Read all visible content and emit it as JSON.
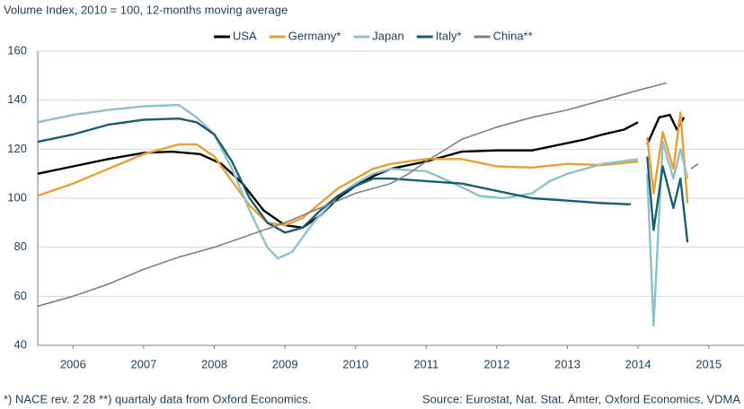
{
  "chart_data": {
    "type": "line",
    "title": "Volume Index, 2010 = 100, 12-months moving average",
    "xlim": [
      2006,
      2016
    ],
    "xticks": [
      {
        "value": 2006.5,
        "label": "2006"
      },
      {
        "value": 2007.5,
        "label": "2007"
      },
      {
        "value": 2008.5,
        "label": "2008"
      },
      {
        "value": 2009.5,
        "label": "2009"
      },
      {
        "value": 2010.5,
        "label": "2010"
      },
      {
        "value": 2011.5,
        "label": "2011"
      },
      {
        "value": 2012.5,
        "label": "2012"
      },
      {
        "value": 2013.5,
        "label": "2013"
      },
      {
        "value": 2014.5,
        "label": "2014"
      },
      {
        "value": 2015.5,
        "label": "2015"
      }
    ],
    "ylim": [
      40,
      160
    ],
    "yticks": [
      40,
      60,
      80,
      100,
      120,
      140,
      160
    ],
    "grid": true,
    "legend": "top",
    "series": [
      {
        "name": "USA",
        "color": "#000000",
        "x": [
          2006,
          2006.5,
          2007,
          2007.5,
          2007.9,
          2008.3,
          2008.6,
          2008.9,
          2009.2,
          2009.5,
          2009.75,
          2010,
          2010.25,
          2010.5,
          2010.75,
          2011,
          2011.5,
          2012,
          2012.5,
          2013,
          2013.25,
          2013.75,
          2014,
          2014.3,
          2014.5,
          null,
          2014.63,
          2014.8,
          2014.95,
          2015.05,
          2015.15
        ],
        "values": [
          110,
          113,
          116,
          118.5,
          119,
          118,
          114,
          106,
          95,
          89,
          88,
          93,
          100,
          105,
          109,
          112,
          115,
          119,
          119.5,
          119.5,
          121,
          124,
          126,
          128,
          131,
          null,
          122,
          133,
          134,
          128,
          133
        ]
      },
      {
        "name": "Germany*",
        "color": "#e8a030",
        "x": [
          2006,
          2006.5,
          2007,
          2007.5,
          2008,
          2008.25,
          2008.5,
          2008.75,
          2009,
          2009.25,
          2009.5,
          2009.75,
          2010,
          2010.25,
          2010.5,
          2010.75,
          2011,
          2011.5,
          2012,
          2012.5,
          2013,
          2013.5,
          2014,
          2014.5,
          null,
          2014.63,
          2014.72,
          2014.85,
          2015,
          2015.1,
          2015.2
        ],
        "values": [
          101,
          106,
          112,
          118,
          122,
          122,
          117,
          107,
          97,
          90,
          89,
          92,
          98,
          104,
          108,
          112,
          114,
          116,
          116,
          113,
          112.5,
          114,
          113.5,
          115,
          null,
          125,
          102,
          127,
          112,
          135,
          98
        ]
      },
      {
        "name": "Japan",
        "color": "#8fc1cc",
        "x": [
          2006,
          2006.5,
          2007,
          2007.5,
          2008,
          2008.25,
          2008.5,
          2008.75,
          2009,
          2009.25,
          2009.4,
          2009.6,
          2009.9,
          2010.25,
          2010.5,
          2010.75,
          2011,
          2011.5,
          2011.9,
          2012.25,
          2012.6,
          2013,
          2013.25,
          2013.5,
          2014,
          2014.5,
          null,
          2014.63,
          2014.72,
          2014.85,
          2015,
          2015.1,
          2015.2
        ],
        "values": [
          131,
          134,
          136,
          137.5,
          138,
          133,
          126,
          112,
          95,
          80,
          75.5,
          78,
          90,
          101,
          106,
          110,
          112,
          111,
          106,
          101,
          100,
          102,
          107,
          110,
          114,
          116,
          null,
          110,
          48,
          123,
          108,
          120,
          108
        ]
      },
      {
        "name": "Italy*",
        "color": "#1b5e74",
        "x": [
          2006,
          2006.5,
          2007,
          2007.5,
          2008,
          2008.25,
          2008.5,
          2008.75,
          2009,
          2009.25,
          2009.5,
          2009.75,
          2010,
          2010.25,
          2010.5,
          2010.75,
          2011,
          2011.5,
          2012,
          2012.5,
          2013,
          2013.5,
          2014,
          2014.4,
          null,
          2014.63,
          2014.72,
          2014.85,
          2015,
          2015.1,
          2015.2
        ],
        "values": [
          123,
          126,
          130,
          132,
          132.5,
          131,
          126,
          115,
          100,
          90,
          86,
          88,
          95,
          101,
          105,
          108,
          108,
          107,
          106,
          103,
          100,
          99,
          98,
          97.5,
          null,
          117,
          87,
          113,
          96,
          108,
          82
        ]
      },
      {
        "name": "China**",
        "color": "#808080",
        "x": [
          2006,
          2006.5,
          2007,
          2007.5,
          2008,
          2008.5,
          2009,
          2009.5,
          2010,
          2010.5,
          2011,
          2011.25,
          2011.5,
          2012,
          2012.5,
          2013,
          2013.5,
          2014,
          2014.5,
          2014.9,
          null,
          2015.25,
          2015.35
        ],
        "values": [
          56,
          60,
          65,
          71,
          76,
          80,
          85,
          90,
          96,
          102,
          106,
          110,
          115,
          124,
          129,
          133,
          136,
          140,
          144,
          147,
          null,
          112,
          114
        ]
      }
    ],
    "footnote": "*) NACE rev. 2 28  **) quartaly data from Oxford Economics.",
    "source": "Source: Eurostat, Nat. Stat. Ämter, Oxford Economics, VDMA"
  }
}
